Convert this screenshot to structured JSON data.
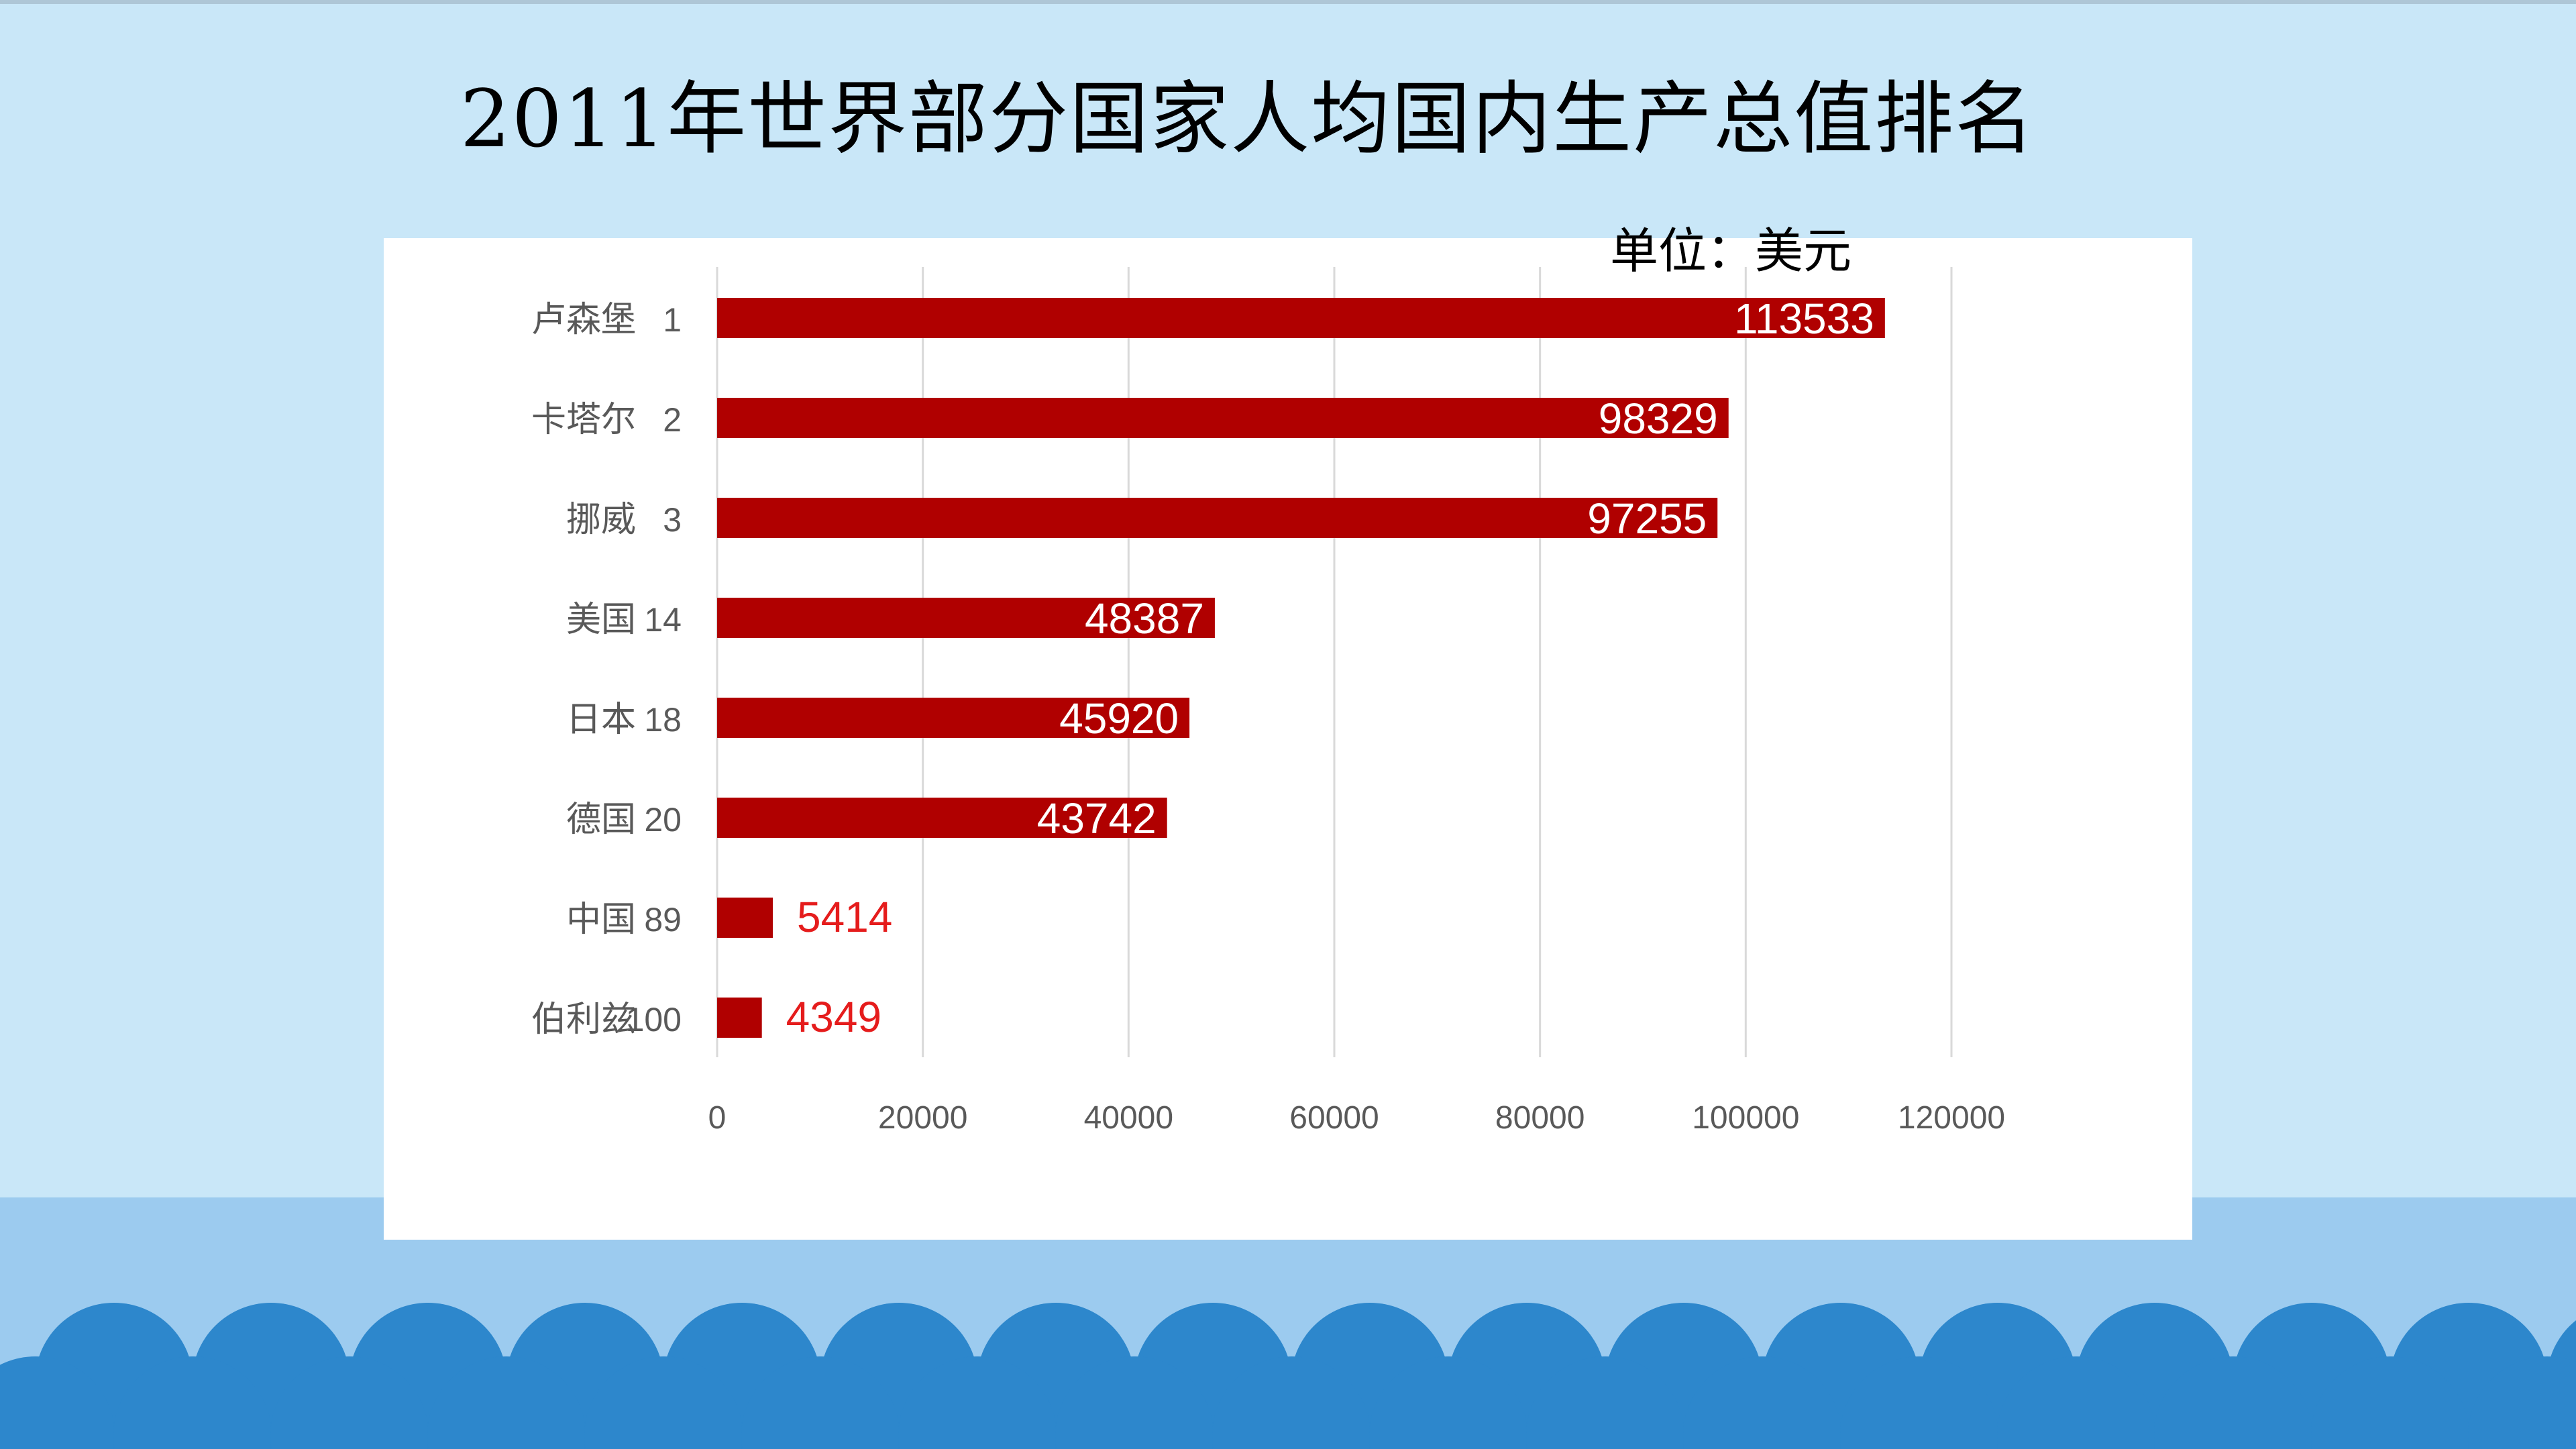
{
  "title": "2011年世界部分国家人均国内生产总值排名",
  "unit": "单位：美元",
  "colors": {
    "background": "#c9e7f8",
    "bar": "#b00000",
    "label_inside": "#ffffff",
    "label_outside": "#e51c1c",
    "axis_text": "#595959",
    "gridline": "#d9d9d9",
    "wave": "#2d87cc"
  },
  "chart_data": {
    "type": "bar",
    "orientation": "horizontal",
    "categories": [
      {
        "country": "卢森堡",
        "rank": "1"
      },
      {
        "country": "卡塔尔",
        "rank": "2"
      },
      {
        "country": "挪威",
        "rank": "3"
      },
      {
        "country": "美国",
        "rank": "14"
      },
      {
        "country": "日本",
        "rank": "18"
      },
      {
        "country": "德国",
        "rank": "20"
      },
      {
        "country": "中国",
        "rank": "89"
      },
      {
        "country": "伯利兹",
        "rank": "100"
      }
    ],
    "values": [
      113533,
      98329,
      97255,
      48387,
      45920,
      43742,
      5414,
      4349
    ],
    "data_labels": [
      "113533",
      "98329",
      "97255",
      "48387",
      "45920",
      "43742",
      "5414",
      "4349"
    ],
    "x_ticks": [
      "0",
      "20000",
      "40000",
      "60000",
      "80000",
      "100000",
      "120000"
    ],
    "xlim": [
      0,
      120000
    ],
    "grid": true,
    "legend": "none"
  }
}
